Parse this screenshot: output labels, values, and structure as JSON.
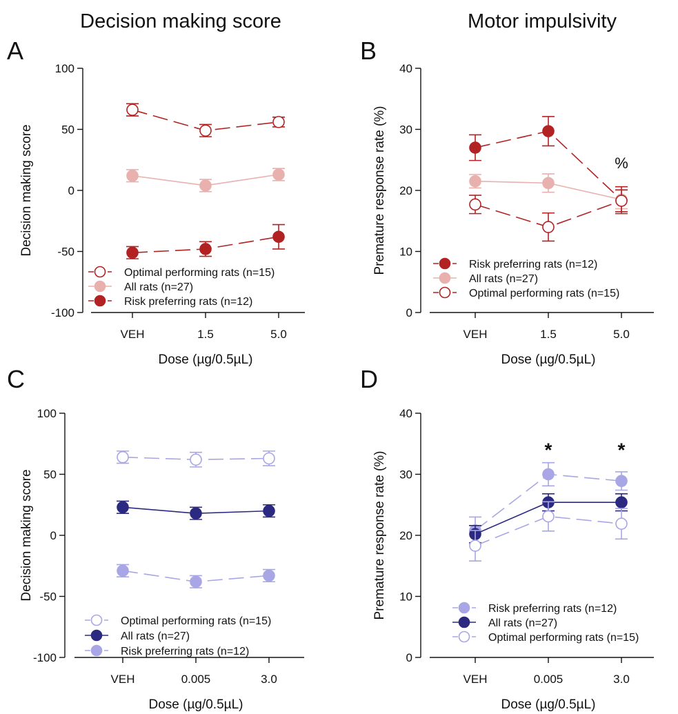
{
  "column_titles": [
    "Decision making score",
    "Motor impulsivity"
  ],
  "colors": {
    "dark_red": "#b22222",
    "pink": "#e8b1ad",
    "navy": "#2b2a80",
    "lavender": "#a8a6e4"
  },
  "chart_data": [
    {
      "type": "line",
      "panel": "A",
      "xlabel": "Dose (µg/0.5µL)",
      "ylabel": "Decision making score",
      "categories": [
        "VEH",
        "1.5",
        "5.0"
      ],
      "ylim": [
        -100,
        100
      ],
      "yticks": [
        -100,
        -50,
        0,
        50,
        100
      ],
      "ytick_labels": [
        "-100",
        "-50",
        "0",
        "50",
        "100"
      ],
      "legend_position": "bottom-left",
      "series": [
        {
          "name": "Optimal performing rats (n=15)",
          "values": [
            66,
            49,
            56
          ],
          "errors": [
            5,
            5,
            4
          ],
          "color": "#b22222",
          "marker": "open",
          "dashed": true
        },
        {
          "name": "All rats (n=27)",
          "values": [
            12,
            4,
            13
          ],
          "errors": [
            5,
            5,
            5
          ],
          "color": "#e8b1ad",
          "marker": "filled",
          "dashed": false
        },
        {
          "name": "Risk preferring rats (n=12)",
          "values": [
            -51,
            -48,
            -38
          ],
          "errors": [
            5,
            6,
            10
          ],
          "color": "#b22222",
          "marker": "filled",
          "dashed": true
        }
      ],
      "annotations": []
    },
    {
      "type": "line",
      "panel": "B",
      "xlabel": "Dose (µg/0.5µL)",
      "ylabel": "Premature response rate (%)",
      "categories": [
        "VEH",
        "1.5",
        "5.0"
      ],
      "ylim": [
        0,
        40
      ],
      "yticks": [
        0,
        10,
        20,
        30,
        40
      ],
      "ytick_labels": [
        "0",
        "10",
        "20",
        "30",
        "40"
      ],
      "legend_position": "bottom-left",
      "series": [
        {
          "name": "Risk preferring rats (n=12)",
          "values": [
            27,
            29.7,
            18.4
          ],
          "errors": [
            2.1,
            2.4,
            2.2
          ],
          "color": "#b22222",
          "marker": "filled",
          "dashed": true
        },
        {
          "name": "All rats (n=27)",
          "values": [
            21.5,
            21.2,
            18.5
          ],
          "errors": [
            1.1,
            1.5,
            1.5
          ],
          "color": "#e8b1ad",
          "marker": "filled",
          "dashed": false
        },
        {
          "name": "Optimal performing rats (n=15)",
          "values": [
            17.7,
            14,
            18.3
          ],
          "errors": [
            1.5,
            2.3,
            1.8
          ],
          "color": "#b22222",
          "marker": "open",
          "dashed": true
        }
      ],
      "annotations": [
        {
          "text": "%",
          "category_index": 2,
          "y": 24.5,
          "style": "plain"
        }
      ]
    },
    {
      "type": "line",
      "panel": "C",
      "xlabel": "Dose (µg/0.5µL)",
      "ylabel": "Decision making score",
      "categories": [
        "VEH",
        "0.005",
        "3.0"
      ],
      "ylim": [
        -100,
        100
      ],
      "yticks": [
        -100,
        -50,
        0,
        50,
        100
      ],
      "ytick_labels": [
        "-100",
        "-50",
        "0",
        "50",
        "100"
      ],
      "legend_position": "bottom-left",
      "series": [
        {
          "name": "Optimal performing rats (n=15)",
          "values": [
            64,
            62,
            63
          ],
          "errors": [
            5,
            6,
            6
          ],
          "color": "#a8a6e4",
          "marker": "open",
          "dashed": true
        },
        {
          "name": "All rats (n=27)",
          "values": [
            23,
            18,
            20
          ],
          "errors": [
            5,
            5,
            5
          ],
          "color": "#2b2a80",
          "marker": "filled",
          "dashed": false
        },
        {
          "name": "Risk preferring rats (n=12)",
          "values": [
            -29,
            -38,
            -33
          ],
          "errors": [
            5,
            5,
            5
          ],
          "color": "#a8a6e4",
          "marker": "filled",
          "dashed": true
        }
      ],
      "annotations": []
    },
    {
      "type": "line",
      "panel": "D",
      "xlabel": "Dose (µg/0.5µL)",
      "ylabel": "Premature response rate (%)",
      "categories": [
        "VEH",
        "0.005",
        "3.0"
      ],
      "ylim": [
        0,
        40
      ],
      "yticks": [
        0,
        10,
        20,
        30,
        40
      ],
      "ytick_labels": [
        "0",
        "10",
        "20",
        "30",
        "40"
      ],
      "legend_position": "bottom-left",
      "series": [
        {
          "name": "Risk preferring rats (n=12)",
          "values": [
            20.8,
            30,
            28.9
          ],
          "errors": [
            2.2,
            1.9,
            1.5
          ],
          "color": "#a8a6e4",
          "marker": "filled",
          "dashed": true
        },
        {
          "name": "All rats (n=27)",
          "values": [
            20.2,
            25.4,
            25.4
          ],
          "errors": [
            1.4,
            1.4,
            1.4
          ],
          "color": "#2b2a80",
          "marker": "filled",
          "dashed": false
        },
        {
          "name": "Optimal performing rats (n=15)",
          "values": [
            18.3,
            23.1,
            21.9
          ],
          "errors": [
            2.5,
            2.4,
            2.5
          ],
          "color": "#a8a6e4",
          "marker": "open",
          "dashed": true
        }
      ],
      "annotations": [
        {
          "text": "*",
          "category_index": 1,
          "y": 34.5,
          "style": "star"
        },
        {
          "text": "*",
          "category_index": 2,
          "y": 34.5,
          "style": "star"
        }
      ]
    }
  ]
}
